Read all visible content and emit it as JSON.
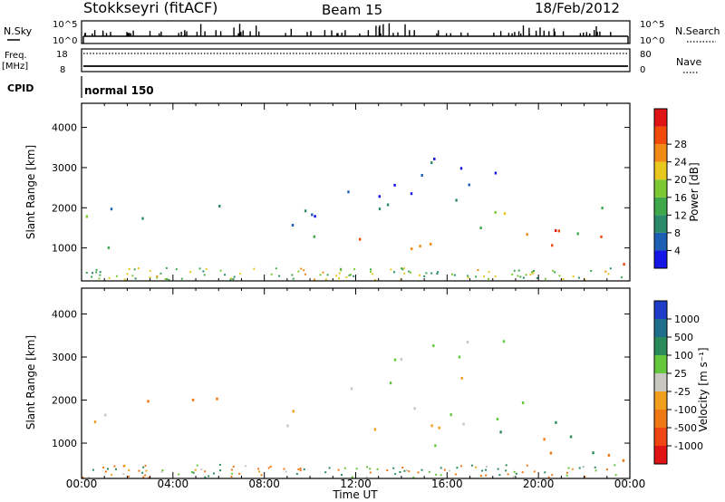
{
  "header": {
    "title": "Stokkseyri (fitACF)",
    "beam": "Beam 15",
    "date": "18/Feb/2012"
  },
  "top_panels": {
    "nsky_label": "N.Sky",
    "nsearch_label": "N.Search",
    "freq_label_line1": "Freq.",
    "freq_label_line2": "[MHz]",
    "nave_label": "Nave",
    "cpid_label": "CPID",
    "cpid_value": "normal 150",
    "noise_ticks": [
      "10^5",
      "10^0"
    ],
    "freq_ticks": [
      "18",
      "8"
    ],
    "nave_ticks": [
      "80",
      "0"
    ]
  },
  "x_axis": {
    "label": "Time UT",
    "ticks": [
      "00:00",
      "04:00",
      "08:00",
      "12:00",
      "16:00",
      "20:00",
      "00:00"
    ]
  },
  "power_colorbar": {
    "label": "Power [dB]",
    "ticks": [
      "4",
      "8",
      "12",
      "16",
      "20",
      "24",
      "28"
    ],
    "colors": [
      "#1515e6",
      "#1e5fb4",
      "#2a8a6a",
      "#3fa84a",
      "#7cc832",
      "#e8c81e",
      "#f08a14",
      "#f04b0a",
      "#e01414"
    ]
  },
  "velocity_colorbar": {
    "label": "Velocity [m s⁻¹]",
    "ticks": [
      "1000",
      "500",
      "100",
      "25",
      "-25",
      "-100",
      "-500",
      "-1000"
    ],
    "colors": [
      "#1e3cc8",
      "#1e6e8c",
      "#2a8a5a",
      "#64c83c",
      "#c8c8c0",
      "#f0a01e",
      "#f07814",
      "#f04614",
      "#e01414"
    ]
  },
  "chart_data": [
    {
      "type": "heatmap",
      "panel": "power",
      "xlabel": "Time UT",
      "ylabel": "Slant Range [km]",
      "x_ticks": [
        "00:00",
        "04:00",
        "08:00",
        "12:00",
        "16:00",
        "20:00",
        "00:00"
      ],
      "y_ticks": [
        "1000",
        "2000",
        "3000",
        "4000"
      ],
      "xlim_hours": [
        0,
        24
      ],
      "ylim": [
        180,
        4600
      ],
      "color_label": "Power [dB]",
      "blobs": [
        {
          "t0": 0.0,
          "t1": 0.6,
          "r0": 1200,
          "r1": 2100,
          "level": 10
        },
        {
          "t0": 0.6,
          "t1": 1.4,
          "r0": 700,
          "r1": 2400,
          "level": 8
        },
        {
          "t0": 2.4,
          "t1": 3.6,
          "r0": 1200,
          "r1": 2100,
          "level": 12
        },
        {
          "t0": 3.2,
          "t1": 3.9,
          "r0": 1400,
          "r1": 1800,
          "level": 20
        },
        {
          "t0": 4.6,
          "t1": 6.2,
          "r0": 1100,
          "r1": 2200,
          "level": 14
        },
        {
          "t0": 5.2,
          "t1": 5.8,
          "r0": 1400,
          "r1": 1800,
          "level": 20
        },
        {
          "t0": 7.0,
          "t1": 10.0,
          "r0": 1300,
          "r1": 2000,
          "level": 8
        },
        {
          "t0": 8.5,
          "t1": 10.5,
          "r0": 1200,
          "r1": 1600,
          "level": 16
        },
        {
          "t0": 9.5,
          "t1": 16.5,
          "r0": 900,
          "r1": 1500,
          "level": 22
        },
        {
          "t0": 10.0,
          "t1": 17.5,
          "r0": 1500,
          "r1": 2600,
          "level": 6
        },
        {
          "t0": 14.0,
          "t1": 18.5,
          "r0": 2000,
          "r1": 3400,
          "level": 4
        },
        {
          "t0": 16.0,
          "t1": 19.5,
          "r0": 1100,
          "r1": 2000,
          "level": 18
        },
        {
          "t0": 19.0,
          "t1": 22.5,
          "r0": 700,
          "r1": 1800,
          "level": 26
        },
        {
          "t0": 21.0,
          "t1": 22.8,
          "r0": 1000,
          "r1": 2400,
          "level": 14
        },
        {
          "t0": 22.5,
          "t1": 24.0,
          "r0": 200,
          "r1": 1400,
          "level": 28
        }
      ]
    },
    {
      "type": "heatmap",
      "panel": "velocity",
      "xlabel": "Time UT",
      "ylabel": "Slant Range [km]",
      "x_ticks": [
        "00:00",
        "04:00",
        "08:00",
        "12:00",
        "16:00",
        "20:00",
        "00:00"
      ],
      "y_ticks": [
        "1000",
        "2000",
        "3000",
        "4000"
      ],
      "xlim_hours": [
        0,
        24
      ],
      "ylim": [
        180,
        4600
      ],
      "color_label": "Velocity [m s⁻¹]",
      "blobs": [
        {
          "t0": 0.0,
          "t1": 0.6,
          "r0": 1200,
          "r1": 2100,
          "level": -100
        },
        {
          "t0": 0.6,
          "t1": 1.4,
          "r0": 700,
          "r1": 2400,
          "level": 50
        },
        {
          "t0": 2.4,
          "t1": 3.9,
          "r0": 1200,
          "r1": 2100,
          "level": -300
        },
        {
          "t0": 4.6,
          "t1": 6.2,
          "r0": 1100,
          "r1": 2200,
          "level": -300
        },
        {
          "t0": 7.0,
          "t1": 9.5,
          "r0": 1300,
          "r1": 2000,
          "level": 0
        },
        {
          "t0": 9.5,
          "t1": 17.5,
          "r0": 900,
          "r1": 2400,
          "level": 0
        },
        {
          "t0": 13.0,
          "t1": 18.5,
          "r0": 2000,
          "r1": 3400,
          "level": 0
        },
        {
          "t0": 17.0,
          "t1": 19.5,
          "r0": 1100,
          "r1": 2000,
          "level": 80
        },
        {
          "t0": 19.0,
          "t1": 21.0,
          "r0": 700,
          "r1": 1600,
          "level": -300
        },
        {
          "t0": 20.5,
          "t1": 22.5,
          "r0": 700,
          "r1": 1900,
          "level": 300
        },
        {
          "t0": 22.5,
          "t1": 24.0,
          "r0": 200,
          "r1": 1400,
          "level": -300
        }
      ]
    }
  ]
}
